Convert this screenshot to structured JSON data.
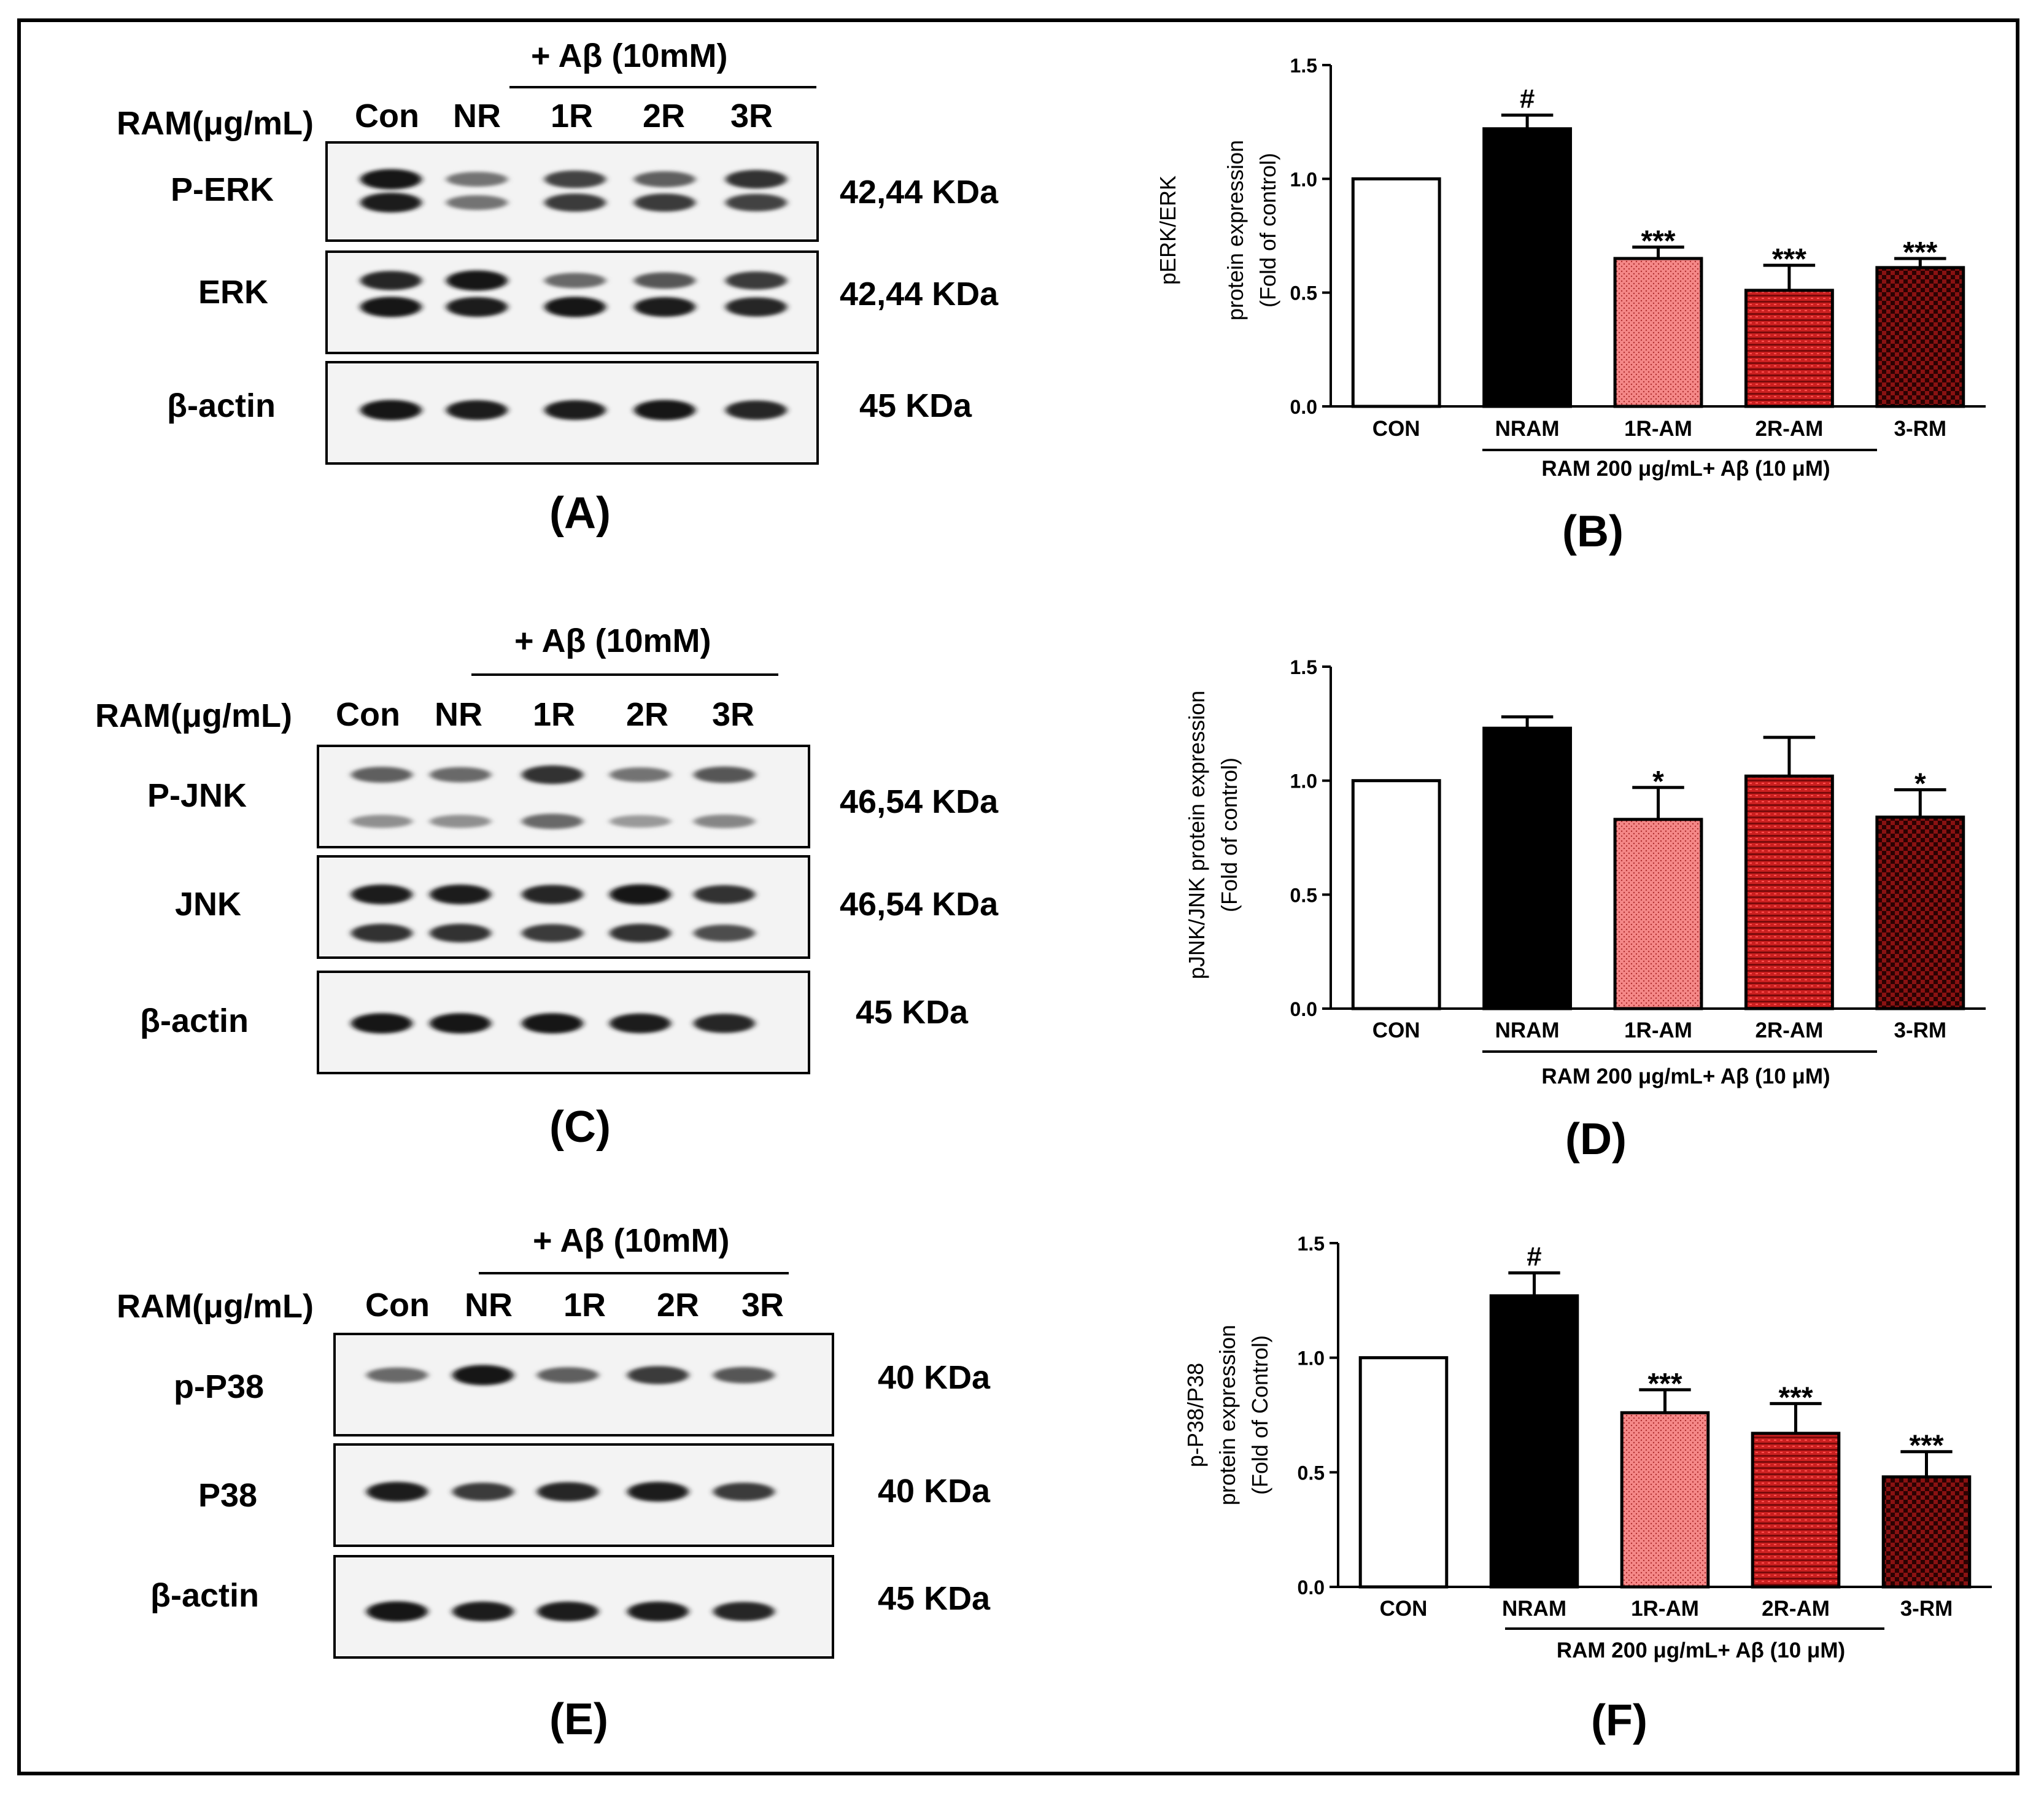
{
  "blots": [
    {
      "panel_label": "(A)",
      "treatment_header": "+ Aβ (10mM)",
      "dose_label": "RAM(μg/mL)",
      "lanes": [
        "Con",
        "NR",
        "1R",
        "2R",
        "3R"
      ],
      "rows": [
        {
          "protein": "P-ERK",
          "size": "42,44 KDa"
        },
        {
          "protein": "ERK",
          "size": "42,44 KDa"
        },
        {
          "protein": "β-actin",
          "size": "45 KDa"
        }
      ]
    },
    {
      "panel_label": "(C)",
      "treatment_header": "+ Aβ (10mM)",
      "dose_label": "RAM(μg/mL)",
      "lanes": [
        "Con",
        "NR",
        "1R",
        "2R",
        "3R"
      ],
      "rows": [
        {
          "protein": "P-JNK",
          "size": "46,54 KDa"
        },
        {
          "protein": "JNK",
          "size": "46,54 KDa"
        },
        {
          "protein": "β-actin",
          "size": "45 KDa"
        }
      ]
    },
    {
      "panel_label": "(E)",
      "treatment_header": "+ Aβ (10mM)",
      "dose_label": "RAM(μg/mL)",
      "lanes": [
        "Con",
        "NR",
        "1R",
        "2R",
        "3R"
      ],
      "rows": [
        {
          "protein": "p-P38",
          "size": "40 KDa"
        },
        {
          "protein": "P38",
          "size": "40 KDa"
        },
        {
          "protein": "β-actin",
          "size": "45 KDa"
        }
      ]
    }
  ],
  "chart_data": [
    {
      "type": "bar",
      "panel_label": "(B)",
      "ylabel_lines": [
        "pERK/ERK",
        "protein expression",
        "(Fold of control)"
      ],
      "categories": [
        "CON",
        "NRAM",
        "1R-AM",
        "2R-AM",
        "3-RM"
      ],
      "values": [
        1.0,
        1.22,
        0.65,
        0.51,
        0.61
      ],
      "errors": [
        0.0,
        0.06,
        0.05,
        0.11,
        0.04
      ],
      "annotations": [
        "",
        "#",
        "***",
        "***",
        "***"
      ],
      "ylim": [
        0,
        1.5
      ],
      "yticks": [
        "0.0",
        "0.5",
        "1.0",
        "1.5"
      ],
      "group_label": "RAM 200 μg/mL+ Aβ (10 μM)",
      "bar_fills": [
        "white",
        "black",
        "#f08080",
        "#c81e1e",
        "#7a0c0c"
      ]
    },
    {
      "type": "bar",
      "panel_label": "(D)",
      "ylabel_lines": [
        "pJNK/JNK protein expression",
        "(Fold of control)"
      ],
      "categories": [
        "CON",
        "NRAM",
        "1R-AM",
        "2R-AM",
        "3-RM"
      ],
      "values": [
        1.0,
        1.23,
        0.83,
        1.02,
        0.84
      ],
      "errors": [
        0.0,
        0.05,
        0.14,
        0.17,
        0.12
      ],
      "annotations": [
        "",
        "",
        "*",
        "",
        "*"
      ],
      "ylim": [
        0,
        1.5
      ],
      "yticks": [
        "0.0",
        "0.5",
        "1.0",
        "1.5"
      ],
      "group_label": "RAM 200 μg/mL+ Aβ (10 μM)",
      "bar_fills": [
        "white",
        "black",
        "#f08080",
        "#c81e1e",
        "#7a0c0c"
      ]
    },
    {
      "type": "bar",
      "panel_label": "(F)",
      "ylabel_lines": [
        "p-P38/P38",
        "protein expression",
        "(Fold of Control)"
      ],
      "categories": [
        "CON",
        "NRAM",
        "1R-AM",
        "2R-AM",
        "3-RM"
      ],
      "values": [
        1.0,
        1.27,
        0.76,
        0.67,
        0.48
      ],
      "errors": [
        0.0,
        0.1,
        0.1,
        0.13,
        0.11
      ],
      "annotations": [
        "",
        "#",
        "***",
        "***",
        "***"
      ],
      "ylim": [
        0,
        1.5
      ],
      "yticks": [
        "0.0",
        "0.5",
        "1.0",
        "1.5"
      ],
      "group_label": "RAM 200 μg/mL+ Aβ (10 μM)",
      "bar_fills": [
        "white",
        "black",
        "#f08080",
        "#c81e1e",
        "#7a0c0c"
      ]
    }
  ]
}
